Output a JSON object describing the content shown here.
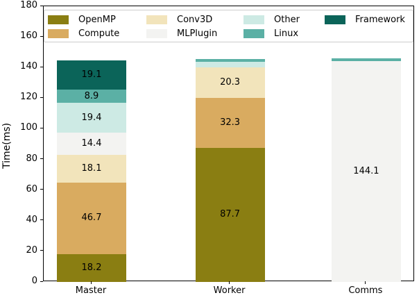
{
  "chart_data": {
    "type": "bar",
    "stacked": true,
    "title": "",
    "xlabel": "",
    "ylabel": "Time(ms)",
    "ylim": [
      0,
      180
    ],
    "yticks": [
      0,
      20,
      40,
      60,
      80,
      100,
      120,
      140,
      160,
      180
    ],
    "grid": false,
    "categories": [
      "Master",
      "Worker",
      "Comms"
    ],
    "series": [
      {
        "name": "OpenMP",
        "color": "#8a7e12",
        "values": [
          18.2,
          87.7,
          0
        ]
      },
      {
        "name": "Compute",
        "color": "#d9ab60",
        "values": [
          46.7,
          32.3,
          0
        ]
      },
      {
        "name": "Conv3D",
        "color": "#f2e4bb",
        "values": [
          18.1,
          20.3,
          0
        ]
      },
      {
        "name": "MLPlugin",
        "color": "#f3f3f1",
        "values": [
          14.4,
          0,
          144.1
        ]
      },
      {
        "name": "Other",
        "color": "#cdeae4",
        "values": [
          19.4,
          3.5,
          0
        ]
      },
      {
        "name": "Linux",
        "color": "#5bb0a5",
        "values": [
          8.9,
          1.8,
          1.8
        ]
      },
      {
        "name": "Framework",
        "color": "#0b6459",
        "values": [
          19.1,
          0,
          0
        ]
      }
    ],
    "value_label_min": 5,
    "value_label_decimals": 1,
    "legend": {
      "position": "upper center",
      "ncol": 4,
      "entries": [
        "OpenMP",
        "Compute",
        "Conv3D",
        "MLPlugin",
        "Other",
        "Linux",
        "Framework"
      ]
    }
  },
  "colors": {
    "background": "#ffffff",
    "axis": "#000000",
    "legend_border": "#cccccc",
    "label_text": "#000000"
  }
}
